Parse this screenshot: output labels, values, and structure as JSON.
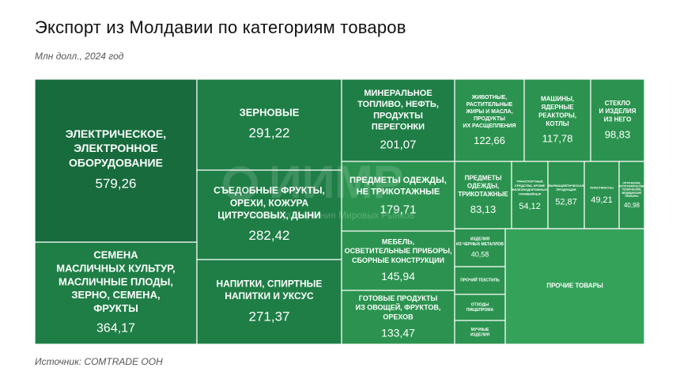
{
  "title": "Экспорт из Молдавии по категориям товаров",
  "subtitle": "Млн долл., 2024 год",
  "source": "Источник: COMTRADE ООН",
  "watermark": {
    "logo": "ИИМР",
    "tagline": "Институт Изучения Мировых Рынков"
  },
  "colors": {
    "dark": "#176b3c",
    "mid": "#1f7e46",
    "light": "#2b934f",
    "lighter": "#35a25a",
    "border": "#ffffff"
  },
  "chart_data": {
    "type": "treemap",
    "title": "Экспорт из Молдавии по категориям товаров",
    "subtitle": "Млн долл., 2024 год",
    "unit": "Млн долл.",
    "items": [
      {
        "name": "Электрическое, электронное оборудование",
        "value": 579.26,
        "value_label": "579,26"
      },
      {
        "name": "Семена масличных культур, масличные плоды, зерно, семена, фрукты",
        "value": 364.17,
        "value_label": "364,17"
      },
      {
        "name": "Зерновые",
        "value": 291.22,
        "value_label": "291,22"
      },
      {
        "name": "Съедобные фрукты, орехи, кожура цитрусовых, дыни",
        "value": 282.42,
        "value_label": "282,42"
      },
      {
        "name": "Напитки, спиртные напитки и уксус",
        "value": 271.37,
        "value_label": "271,37"
      },
      {
        "name": "Минеральное топливо, нефть, продукты перегонки",
        "value": 201.07,
        "value_label": "201,07"
      },
      {
        "name": "Предметы одежды, не трикотажные",
        "value": 179.71,
        "value_label": "179,71"
      },
      {
        "name": "Мебель, осветительные приборы, сборные конструкции",
        "value": 145.94,
        "value_label": "145,94"
      },
      {
        "name": "Готовые продукты из овощей, фруктов, орехов",
        "value": 133.47,
        "value_label": "133,47"
      },
      {
        "name": "Животные, растительные жиры и масла, продукты их расщепления",
        "value": 122.66,
        "value_label": "122,66"
      },
      {
        "name": "Машины, ядерные реакторы, котлы",
        "value": 117.78,
        "value_label": "117,78"
      },
      {
        "name": "Стекло и изделия из него",
        "value": 98.83,
        "value_label": "98,83"
      },
      {
        "name": "Предметы одежды, трикотажные",
        "value": 83.13,
        "value_label": "83,13"
      },
      {
        "name": "Транспортные средства, кроме железнодорожных, трамвайных",
        "value": 54.12,
        "value_label": "54,12"
      },
      {
        "name": "Фармацевтическая продукция",
        "value": 52.87,
        "value_label": "52,87"
      },
      {
        "name": "Пластмассы",
        "value": 49.21,
        "value_label": "49,21"
      },
      {
        "name": "Оптические, фотографические, технические, медицинские приборы",
        "value": 40.98,
        "value_label": "40,98"
      },
      {
        "name": "Изделия из черных металлов",
        "value": 40.58,
        "value_label": "40,58"
      },
      {
        "name": "Прочий текстиль",
        "value": null,
        "value_label": ""
      },
      {
        "name": "Отходы пищепрома",
        "value": null,
        "value_label": ""
      },
      {
        "name": "Мучные изделия",
        "value": null,
        "value_label": ""
      },
      {
        "name": "Прочие товары",
        "value": null,
        "value_label": ""
      }
    ]
  }
}
